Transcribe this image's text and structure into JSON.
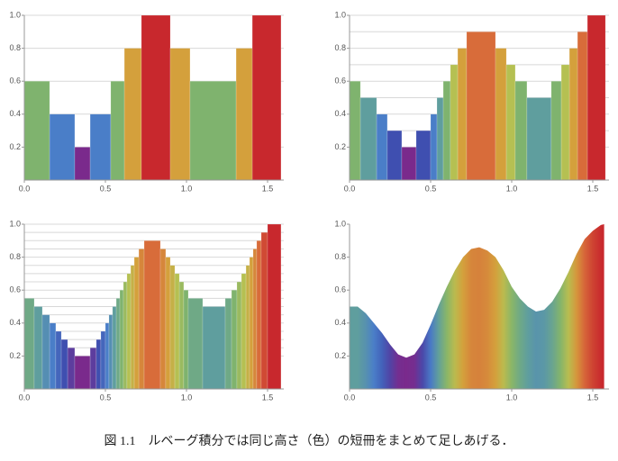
{
  "chart_data": [
    {
      "type": "histogram",
      "bins": [
        0,
        0.156,
        0.311,
        0.406,
        0.533,
        0.617,
        0.722,
        0.9,
        1.022,
        1.306,
        1.406,
        1.583
      ],
      "values": [
        0.6,
        0.4,
        0.2,
        0.4,
        0.6,
        0.8,
        1.0,
        0.8,
        0.6,
        0.8,
        1.0
      ],
      "levels": [
        0.2,
        0.4,
        0.6,
        0.8,
        1.0
      ],
      "colormap": {
        "values": [
          0.2,
          0.3,
          0.4,
          0.5,
          0.6,
          0.7,
          0.8,
          0.9,
          1.0
        ],
        "colors": [
          "#7a2a8c",
          "#3f4fb0",
          "#4a7ec8",
          "#5f9e9e",
          "#7fb36e",
          "#b5c052",
          "#d4a03c",
          "#d86c3a",
          "#c8282d"
        ]
      },
      "xlim": [
        0,
        1.6
      ],
      "ylim": [
        0,
        1
      ],
      "xticks": [
        {
          "value": 0,
          "label": "0.0"
        },
        0.5,
        {
          "value": 1,
          "label": "1.0"
        },
        1.5
      ],
      "yticks": [
        0.2,
        0.4,
        0.6,
        0.8,
        {
          "value": 1,
          "label": "1.0"
        }
      ]
    },
    {
      "type": "histogram",
      "bins": [
        0,
        0.067,
        0.167,
        0.233,
        0.322,
        0.411,
        0.5,
        0.539,
        0.578,
        0.622,
        0.667,
        0.722,
        0.9,
        0.967,
        1.022,
        1.094,
        1.244,
        1.306,
        1.356,
        1.406,
        1.467,
        1.578
      ],
      "values": [
        0.6,
        0.5,
        0.4,
        0.3,
        0.2,
        0.3,
        0.4,
        0.5,
        0.6,
        0.7,
        0.8,
        0.9,
        0.8,
        0.7,
        0.6,
        0.5,
        0.6,
        0.7,
        0.8,
        0.9,
        1.0
      ],
      "levels": [
        0.2,
        0.3,
        0.4,
        0.5,
        0.6,
        0.7,
        0.8,
        0.9,
        1.0
      ],
      "colormap": {
        "values": [
          0.2,
          0.3,
          0.4,
          0.5,
          0.6,
          0.7,
          0.8,
          0.9,
          1.0
        ],
        "colors": [
          "#7a2a8c",
          "#3f4fb0",
          "#4a7ec8",
          "#5f9e9e",
          "#7fb36e",
          "#b5c052",
          "#d4a03c",
          "#d86c3a",
          "#c8282d"
        ]
      },
      "xlim": [
        0,
        1.6
      ],
      "ylim": [
        0,
        1
      ],
      "xticks": [
        {
          "value": 0,
          "label": "0.0"
        },
        0.5,
        {
          "value": 1,
          "label": "1.0"
        },
        1.5
      ],
      "yticks": [
        0.2,
        0.4,
        0.6,
        0.8,
        {
          "value": 1,
          "label": "1.0"
        }
      ]
    },
    {
      "type": "histogram",
      "bins": [
        0,
        0.061,
        0.111,
        0.156,
        0.194,
        0.228,
        0.267,
        0.311,
        0.406,
        0.444,
        0.472,
        0.5,
        0.522,
        0.544,
        0.567,
        0.589,
        0.611,
        0.633,
        0.656,
        0.678,
        0.706,
        0.739,
        0.839,
        0.872,
        0.9,
        0.928,
        0.956,
        0.983,
        1.011,
        1.1,
        1.239,
        1.278,
        1.311,
        1.339,
        1.367,
        1.389,
        1.411,
        1.433,
        1.461,
        1.5,
        1.583
      ],
      "values": [
        0.55,
        0.5,
        0.45,
        0.4,
        0.35,
        0.3,
        0.25,
        0.2,
        0.25,
        0.3,
        0.35,
        0.4,
        0.45,
        0.5,
        0.55,
        0.6,
        0.65,
        0.7,
        0.75,
        0.8,
        0.85,
        0.9,
        0.85,
        0.8,
        0.75,
        0.7,
        0.65,
        0.6,
        0.55,
        0.5,
        0.55,
        0.6,
        0.65,
        0.7,
        0.75,
        0.8,
        0.85,
        0.9,
        0.95,
        1.0
      ],
      "levels": [
        0.2,
        0.25,
        0.3,
        0.35,
        0.4,
        0.45,
        0.5,
        0.55,
        0.6,
        0.65,
        0.7,
        0.75,
        0.8,
        0.85,
        0.9,
        0.95,
        1.0
      ],
      "colormap": {
        "values": [
          0.2,
          0.3,
          0.4,
          0.5,
          0.6,
          0.7,
          0.8,
          0.9,
          1.0
        ],
        "colors": [
          "#7a2a8c",
          "#3f4fb0",
          "#4a7ec8",
          "#5f9e9e",
          "#7fb36e",
          "#b5c052",
          "#d4a03c",
          "#d86c3a",
          "#c8282d"
        ]
      },
      "xlim": [
        0,
        1.6
      ],
      "ylim": [
        0,
        1
      ],
      "xticks": [
        {
          "value": 0,
          "label": "0.0"
        },
        0.5,
        {
          "value": 1,
          "label": "1.0"
        },
        1.5
      ],
      "yticks": [
        0.2,
        0.4,
        0.6,
        0.8,
        {
          "value": 1,
          "label": "1.0"
        }
      ]
    },
    {
      "type": "area",
      "x": [
        0,
        0.05,
        0.1,
        0.15,
        0.2,
        0.25,
        0.3,
        0.35,
        0.4,
        0.45,
        0.5,
        0.55,
        0.6,
        0.65,
        0.7,
        0.75,
        0.8,
        0.85,
        0.9,
        0.95,
        1.0,
        1.05,
        1.1,
        1.15,
        1.2,
        1.25,
        1.3,
        1.35,
        1.4,
        1.45,
        1.5,
        1.55,
        1.57
      ],
      "values": [
        0.5,
        0.5,
        0.46,
        0.4,
        0.34,
        0.27,
        0.21,
        0.19,
        0.21,
        0.28,
        0.39,
        0.51,
        0.62,
        0.72,
        0.8,
        0.85,
        0.86,
        0.84,
        0.8,
        0.72,
        0.62,
        0.55,
        0.5,
        0.47,
        0.48,
        0.53,
        0.61,
        0.71,
        0.82,
        0.91,
        0.96,
        0.995,
        1.0
      ],
      "colormap": {
        "values": [
          0.2,
          0.3,
          0.4,
          0.5,
          0.6,
          0.7,
          0.8,
          0.9,
          1.0
        ],
        "colors": [
          "#7a2a8c",
          "#3f4fb0",
          "#4a7ec8",
          "#5f9e9e",
          "#7fb36e",
          "#b5c052",
          "#d4a03c",
          "#d86c3a",
          "#c8282d"
        ]
      },
      "xlim": [
        0,
        1.6
      ],
      "ylim": [
        0,
        1
      ],
      "xticks": [
        {
          "value": 0,
          "label": "0.0"
        },
        0.5,
        {
          "value": 1,
          "label": "1.0"
        },
        1.5
      ],
      "yticks": [
        0.2,
        0.4,
        0.6,
        0.8,
        {
          "value": 1,
          "label": "1.0"
        }
      ]
    }
  ],
  "caption": "図 1.1　ルベーグ積分では同じ高さ（色）の短冊をまとめて足しあげる．"
}
